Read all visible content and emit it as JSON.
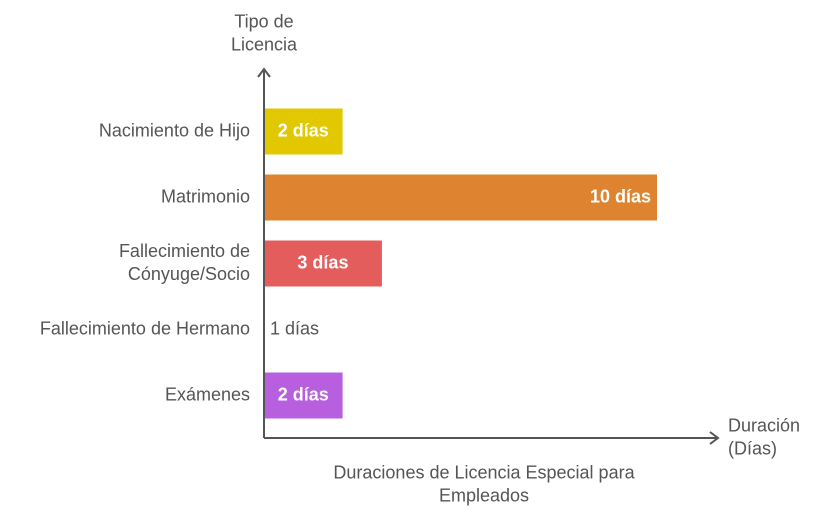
{
  "chart_data": {
    "type": "bar",
    "orientation": "horizontal",
    "ylabel": [
      "Tipo de",
      "Licencia"
    ],
    "xlabel": [
      "Duración",
      "(Días)"
    ],
    "caption": [
      "Duraciones de Licencia Especial para",
      "Empleados"
    ],
    "categories": [
      {
        "label": [
          "Nacimiento de Hijo"
        ],
        "value": 2,
        "value_label": "2 días",
        "color": "#E2C800"
      },
      {
        "label": [
          "Matrimonio"
        ],
        "value": 10,
        "value_label": "10 días",
        "color": "#DE8431"
      },
      {
        "label": [
          "Fallecimiento de",
          "Cónyuge/Socio"
        ],
        "value": 3,
        "value_label": "3 días",
        "color": "#E35D5D"
      },
      {
        "label": [
          "Fallecimiento de Hermano"
        ],
        "value": 1,
        "value_label": "1 días",
        "color": "#FFFFFF"
      },
      {
        "label": [
          "Exámenes"
        ],
        "value": 2,
        "value_label": "2 días",
        "color": "#B85FE0"
      }
    ],
    "xlim": [
      0,
      10
    ],
    "grid": false,
    "legend": "none"
  }
}
